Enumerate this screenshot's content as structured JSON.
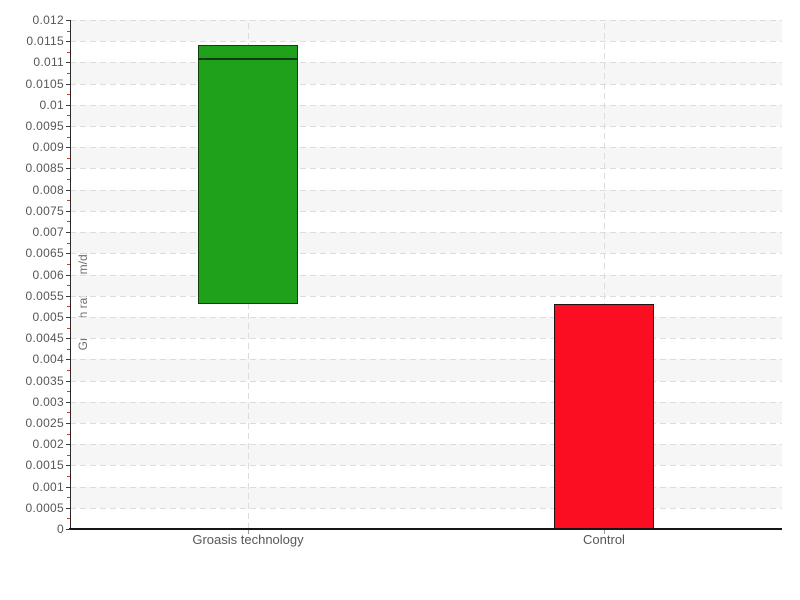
{
  "chart_data": {
    "type": "bar",
    "subtype": "floating-range-bars",
    "title": "",
    "xlabel": "",
    "ylabel": "Growth rate (cm/day)",
    "ylim": [
      0,
      0.012
    ],
    "ytick_step": 0.0005,
    "ytick_labels": [
      "0",
      "0.0005",
      "0.001",
      "0.0015",
      "0.002",
      "0.0025",
      "0.003",
      "0.0035",
      "0.004",
      "0.0045",
      "0.005",
      "0.0055",
      "0.006",
      "0.0065",
      "0.007",
      "0.0075",
      "0.008",
      "0.0085",
      "0.009",
      "0.0095",
      "0.01",
      "0.0105",
      "0.011",
      "0.0115",
      "0.012"
    ],
    "minor_ticks_per_interval": 1,
    "categories": [
      "Groasis technology",
      "Control"
    ],
    "series": [
      {
        "name": "Groasis technology",
        "low": 0.0053,
        "high": 0.0114,
        "marker_line": 0.0111,
        "fill": "#20a11c",
        "border": "#143c10",
        "marker_color": "#0f3c0f"
      },
      {
        "name": "Control",
        "low": 0.0,
        "high": 0.0053,
        "marker_line": null,
        "fill": "#fc0e22",
        "border": "#201114",
        "marker_color": null
      }
    ],
    "grid": {
      "horizontal": "dashed at every major tick",
      "vertical": "dashed at category centers",
      "alternating_bands": true
    },
    "legend": "none"
  },
  "colors": {
    "grid_line": "#dcdcdc",
    "band_fill": "#f6f6f6",
    "axis_line": "#161616",
    "major_tick": "#3c3c3c",
    "minor_tick": "#ee2e1e",
    "tick_text": "#55575a",
    "axis_title_text": "#6e6e6e"
  }
}
